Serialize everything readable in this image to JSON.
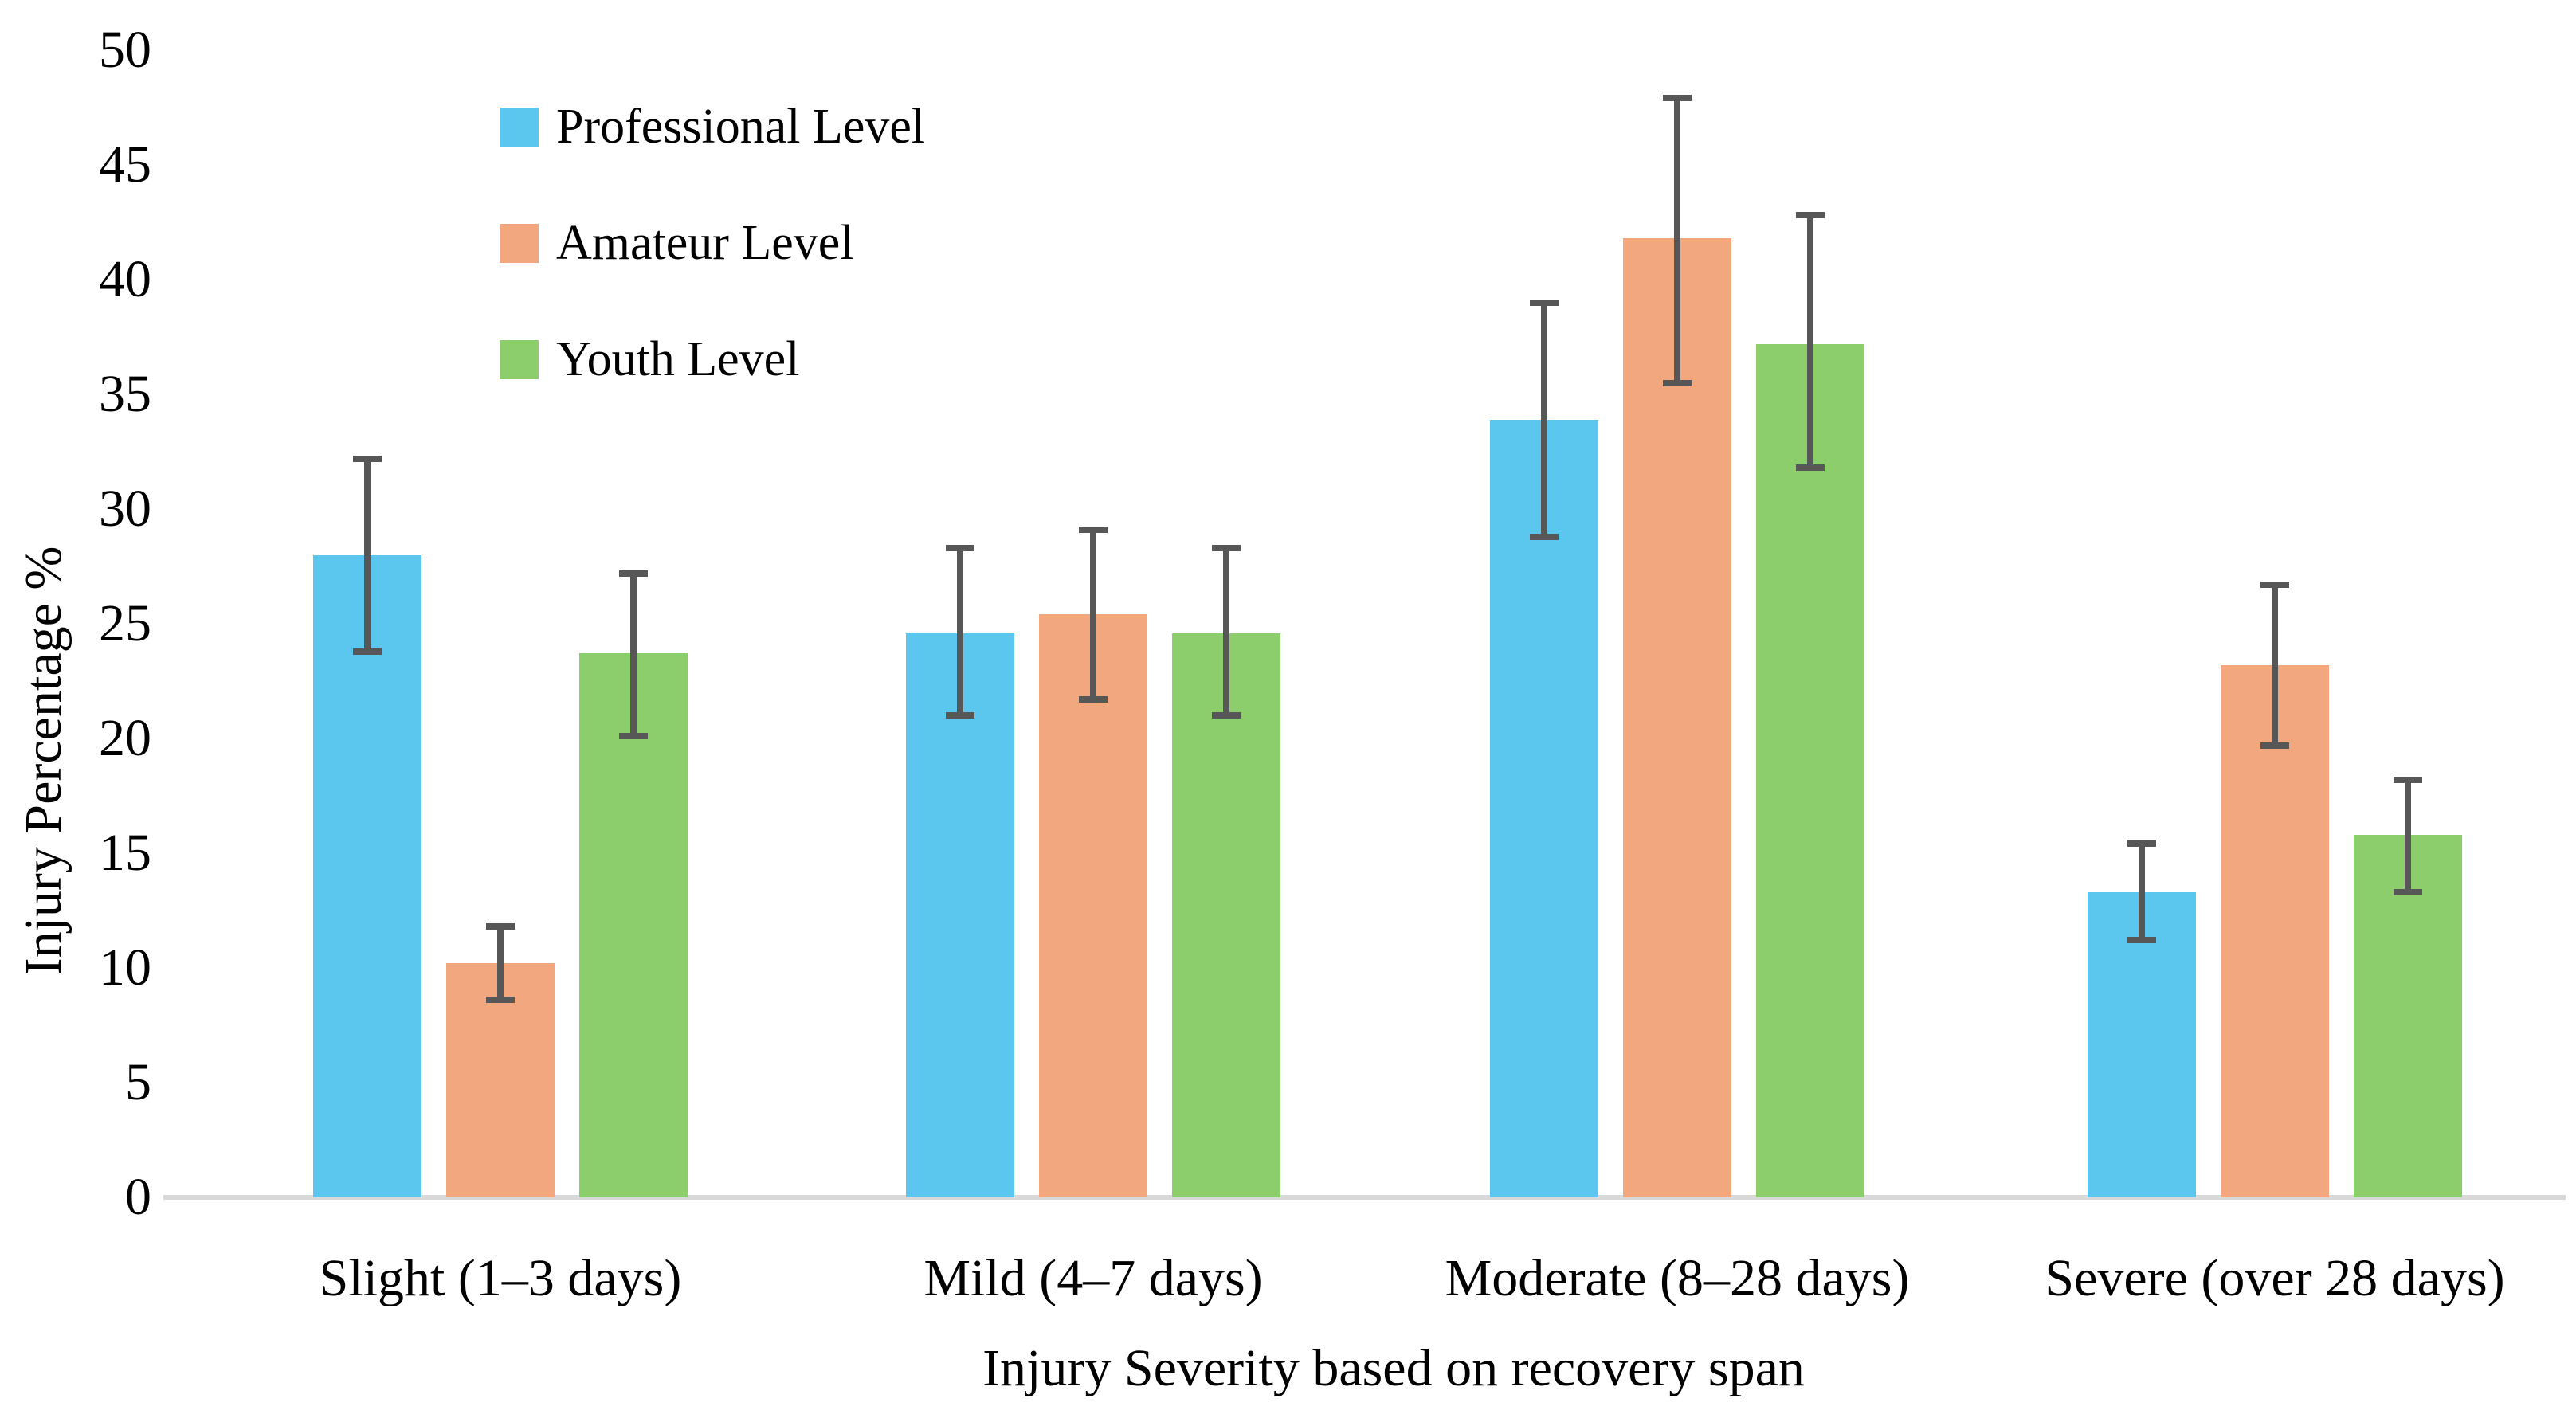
{
  "figure": {
    "background": "#ffffff"
  },
  "chart_data": {
    "type": "bar",
    "title": "",
    "xlabel": "Injury Severity based on recovery span",
    "ylabel": "Injury Percentage %",
    "ylim": [
      0,
      50
    ],
    "ytick_step": 5,
    "grid": false,
    "legend_position": "top-left-inside",
    "error_bars": true,
    "categories": [
      "Slight (1–3 days)",
      "Mild (4–7 days)",
      "Moderate (8–28 days)",
      "Severe (over 28 days)"
    ],
    "series": [
      {
        "name": "Professional Level",
        "color": "#5BC6EE",
        "values": [
          28.0,
          24.6,
          33.9,
          13.3
        ],
        "error_high": [
          32.2,
          28.3,
          39.0,
          15.4
        ],
        "error_low": [
          23.8,
          21.0,
          28.8,
          11.2
        ]
      },
      {
        "name": "Amateur Level",
        "color": "#F2A77E",
        "values": [
          10.2,
          25.4,
          41.8,
          23.2
        ],
        "error_high": [
          11.8,
          29.1,
          47.9,
          26.7
        ],
        "error_low": [
          8.6,
          21.7,
          35.5,
          19.7
        ]
      },
      {
        "name": "Youth Level",
        "color": "#8CCE6B",
        "values": [
          23.7,
          24.6,
          37.2,
          15.8
        ],
        "error_high": [
          27.2,
          28.3,
          42.8,
          18.2
        ],
        "error_low": [
          20.1,
          21.0,
          31.8,
          13.3
        ]
      }
    ],
    "colors": {
      "error_bar": "#575757",
      "axis_line": "#D9D9D9",
      "text": "#000000"
    }
  }
}
